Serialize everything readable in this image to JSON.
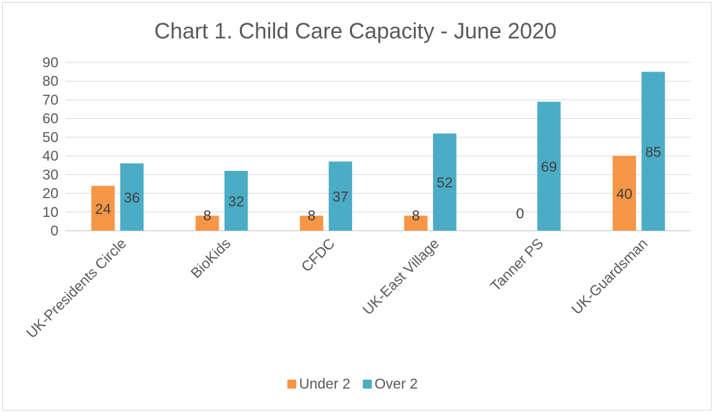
{
  "chart_data": {
    "type": "bar",
    "title": "Chart 1. Child Care Capacity - June 2020",
    "categories": [
      "UK-Presidents Circle",
      "BioKids",
      "CFDC",
      "UK-East Village",
      "Tanner PS",
      "UK-Guardsman"
    ],
    "series": [
      {
        "name": "Under 2",
        "values": [
          24,
          8,
          8,
          8,
          0,
          40
        ],
        "color": "#f79646"
      },
      {
        "name": "Over 2",
        "values": [
          36,
          32,
          37,
          52,
          69,
          85
        ],
        "color": "#4bacc6"
      }
    ],
    "ylim": [
      0,
      90
    ],
    "yticks": [
      0,
      10,
      20,
      30,
      40,
      50,
      60,
      70,
      80,
      90
    ],
    "grid": true,
    "legend": "bottom",
    "xlabel": "",
    "ylabel": ""
  }
}
